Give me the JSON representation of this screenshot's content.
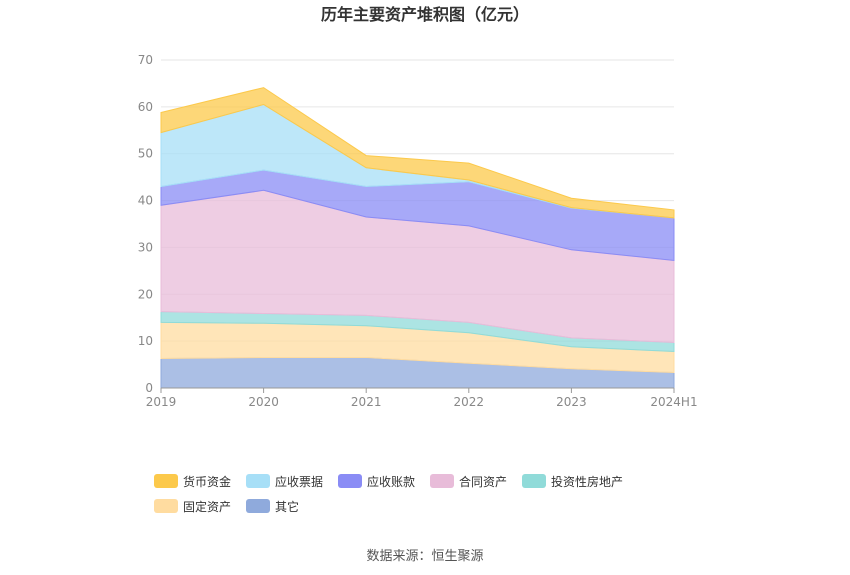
{
  "chart_data": {
    "type": "area",
    "stacked": true,
    "title": "历年主要资产堆积图（亿元）",
    "categories": [
      "2019",
      "2020",
      "2021",
      "2022",
      "2023",
      "2024H1"
    ],
    "ylim": [
      0,
      70
    ],
    "yticks": [
      0,
      10,
      20,
      30,
      40,
      50,
      60,
      70
    ],
    "grid": true,
    "legend_position": "bottom",
    "series": [
      {
        "name": "其它",
        "color": "#8FAADC",
        "values": [
          6.3,
          6.5,
          6.5,
          5.3,
          4.1,
          3.3
        ]
      },
      {
        "name": "固定资产",
        "color": "#FFDCA0",
        "values": [
          7.7,
          7.3,
          6.8,
          6.5,
          4.7,
          4.5
        ]
      },
      {
        "name": "投资性房地产",
        "color": "#90DBD9",
        "values": [
          2.3,
          2.1,
          2.2,
          2.2,
          1.9,
          1.9
        ]
      },
      {
        "name": "合同资产",
        "color": "#E8BCD9",
        "values": [
          22.7,
          26.3,
          21.0,
          20.6,
          18.8,
          17.5
        ]
      },
      {
        "name": "应收账款",
        "color": "#8A8CF5",
        "values": [
          4.0,
          4.3,
          6.5,
          9.4,
          8.9,
          9.1
        ]
      },
      {
        "name": "应收票据",
        "color": "#A7DFF7",
        "values": [
          11.5,
          14.0,
          4.0,
          0.4,
          0.1,
          0.0
        ]
      },
      {
        "name": "货币资金",
        "color": "#FCC94B",
        "values": [
          4.3,
          3.6,
          2.6,
          3.6,
          2.0,
          1.7
        ]
      }
    ]
  },
  "legend_order": [
    "货币资金",
    "应收票据",
    "应收账款",
    "合同资产",
    "投资性房地产",
    "固定资产",
    "其它"
  ],
  "source_text": "数据来源：恒生聚源"
}
